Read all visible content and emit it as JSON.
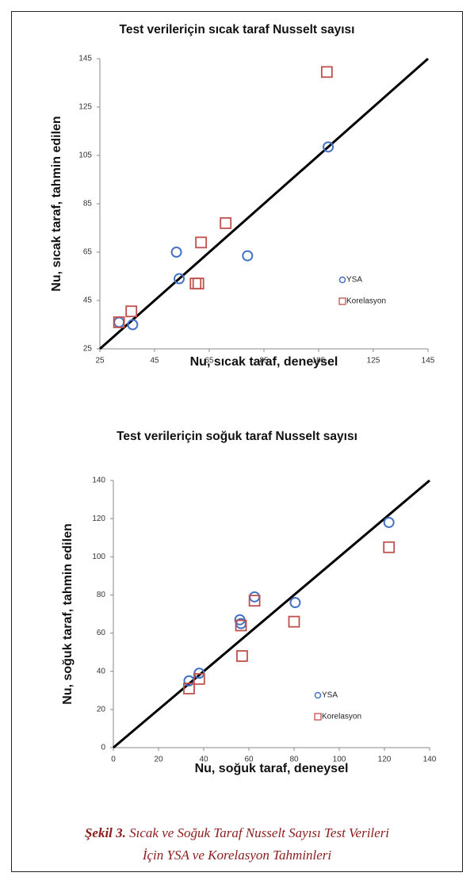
{
  "chart_data": [
    {
      "type": "scatter",
      "title": "Test verileriçin sıcak taraf Nusselt sayısı",
      "x_label": "Nu, sıcak taraf, deneysel",
      "y_label": "Nu, sıcak taraf, tahmin edilen",
      "xlim": [
        25,
        145
      ],
      "ylim": [
        25,
        145
      ],
      "xticks": [
        25,
        45,
        65,
        85,
        105,
        125,
        145
      ],
      "yticks": [
        25,
        45,
        65,
        85,
        105,
        125,
        145
      ],
      "series": [
        {
          "name": "YSA",
          "color": "#4472c4",
          "marker": "circle",
          "x": [
            32,
            37,
            53,
            54,
            79,
            108.5
          ],
          "values": [
            36,
            35,
            65,
            54,
            63.5,
            108.5
          ]
        },
        {
          "name": "Korelasyon",
          "color": "#c0504d",
          "marker": "square",
          "x": [
            32,
            36.5,
            60,
            61,
            62,
            71,
            108
          ],
          "values": [
            36,
            40.5,
            52,
            52,
            69,
            77,
            139.5
          ]
        }
      ]
    },
    {
      "type": "scatter",
      "title": "Test verileriçin soğuk taraf Nusselt sayısı",
      "x_label": "Nu, soğuk taraf, deneysel",
      "y_label": "Nu, soğuk taraf, tahmin edilen",
      "xlim": [
        0,
        140
      ],
      "ylim": [
        0,
        140
      ],
      "xticks": [
        0,
        20,
        40,
        60,
        80,
        100,
        120,
        140
      ],
      "yticks": [
        0,
        20,
        40,
        60,
        80,
        100,
        120,
        140
      ],
      "series": [
        {
          "name": "YSA",
          "color": "#4472c4",
          "marker": "circle",
          "x": [
            33.5,
            38,
            56,
            56.5,
            62.5,
            80.5,
            122
          ],
          "values": [
            35,
            39,
            67,
            65,
            79,
            76,
            118
          ]
        },
        {
          "name": "Korelasyon",
          "color": "#c0504d",
          "marker": "square",
          "x": [
            33.5,
            38,
            56.5,
            57,
            62.5,
            80,
            122
          ],
          "values": [
            31,
            36,
            64,
            48,
            77,
            66,
            105
          ]
        }
      ]
    }
  ],
  "caption": {
    "label": "Şekil 3.",
    "lines": [
      " Sıcak ve Soğuk Taraf Nusselt Sayısı Test Verileri",
      "İçin YSA ve Korelasyon Tahminleri"
    ]
  }
}
